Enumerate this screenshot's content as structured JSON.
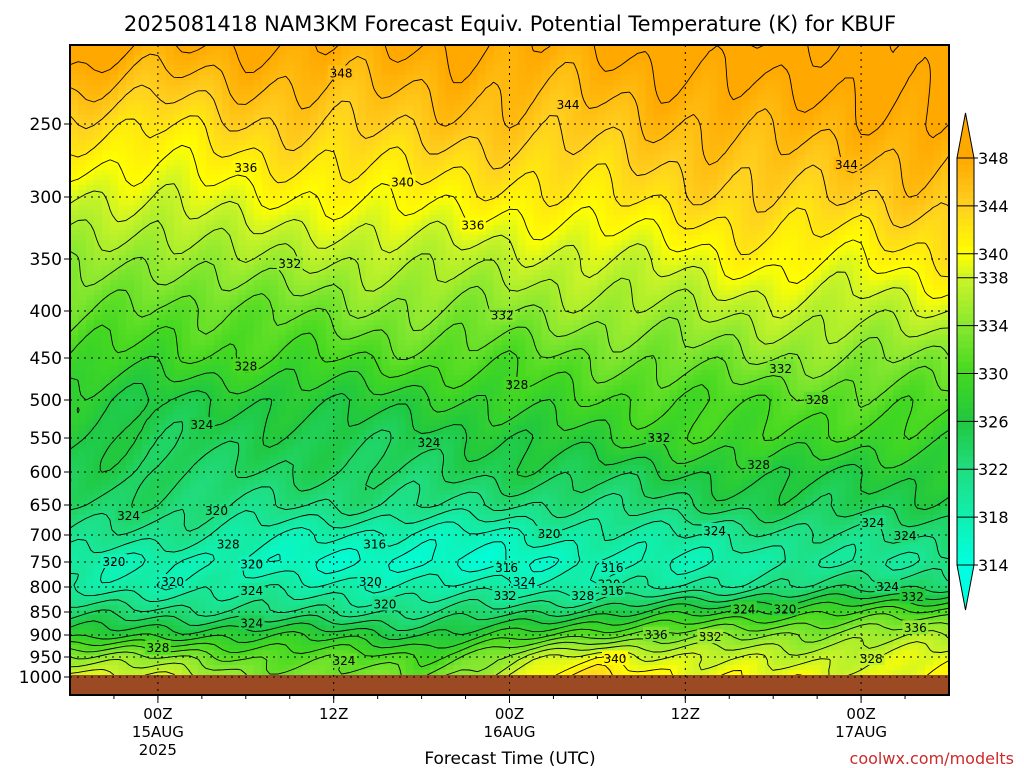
{
  "chart_data": {
    "type": "heatmap",
    "subtype": "time-height contour (filled + line contours)",
    "title": "2025081418 NAM3KM Forecast Equiv. Potential Temperature (K) for KBUF",
    "xlabel": "Forecast Time (UTC)",
    "ylabel": "",
    "y_scale": "pressure (reversed, log-like)",
    "y_ticks": [
      "250",
      "300",
      "350",
      "400",
      "450",
      "500",
      "550",
      "600",
      "650",
      "700",
      "750",
      "800",
      "850",
      "900",
      "950",
      "1000"
    ],
    "ylim_hpa": [
      1000,
      200
    ],
    "x_ticks": [
      {
        "hour": 6,
        "label": "00Z",
        "date": "15AUG",
        "year": "2025"
      },
      {
        "hour": 18,
        "label": "12Z",
        "date": "",
        "year": ""
      },
      {
        "hour": 30,
        "label": "00Z",
        "date": "16AUG",
        "year": ""
      },
      {
        "hour": 42,
        "label": "12Z",
        "date": "",
        "year": ""
      },
      {
        "hour": 54,
        "label": "00Z",
        "date": "17AUG",
        "year": ""
      }
    ],
    "xlim_hours": [
      0,
      60
    ],
    "colorbar": {
      "levels": [
        "314",
        "318",
        "322",
        "326",
        "330",
        "334",
        "338",
        "340",
        "344",
        "348"
      ],
      "colors": [
        "#00ffe0",
        "#10f0b0",
        "#20dd80",
        "#20c840",
        "#44d820",
        "#88e830",
        "#ccf428",
        "#ffff00",
        "#ffd020",
        "#ffa800"
      ],
      "extend": "both"
    },
    "ground_color": "#9b4a24",
    "profiles": [
      {
        "hour": 0,
        "values": [
          [
            200,
            350
          ],
          [
            250,
            343
          ],
          [
            300,
            338
          ],
          [
            350,
            335
          ],
          [
            400,
            333
          ],
          [
            450,
            330
          ],
          [
            500,
            327
          ],
          [
            550,
            326
          ],
          [
            600,
            325
          ],
          [
            650,
            324
          ],
          [
            700,
            322
          ],
          [
            750,
            319
          ],
          [
            800,
            319
          ],
          [
            850,
            323
          ],
          [
            900,
            327
          ],
          [
            950,
            335
          ],
          [
            1000,
            340
          ]
        ]
      },
      {
        "hour": 6,
        "values": [
          [
            200,
            348
          ],
          [
            250,
            342
          ],
          [
            300,
            338
          ],
          [
            350,
            334
          ],
          [
            400,
            331
          ],
          [
            450,
            329
          ],
          [
            500,
            326
          ],
          [
            550,
            325
          ],
          [
            600,
            324
          ],
          [
            650,
            323
          ],
          [
            700,
            321
          ],
          [
            750,
            318
          ],
          [
            800,
            319
          ],
          [
            850,
            323
          ],
          [
            900,
            327
          ],
          [
            950,
            334
          ],
          [
            1000,
            338
          ]
        ]
      },
      {
        "hour": 12,
        "values": [
          [
            200,
            348
          ],
          [
            250,
            344
          ],
          [
            300,
            340
          ],
          [
            350,
            336
          ],
          [
            400,
            332
          ],
          [
            450,
            330
          ],
          [
            500,
            326
          ],
          [
            550,
            325
          ],
          [
            600,
            324
          ],
          [
            650,
            322
          ],
          [
            700,
            319
          ],
          [
            750,
            317
          ],
          [
            800,
            319
          ],
          [
            850,
            322
          ],
          [
            900,
            328
          ],
          [
            950,
            332
          ],
          [
            1000,
            334
          ]
        ]
      },
      {
        "hour": 18,
        "values": [
          [
            200,
            348
          ],
          [
            250,
            344
          ],
          [
            300,
            340
          ],
          [
            350,
            336
          ],
          [
            400,
            333
          ],
          [
            450,
            330
          ],
          [
            500,
            327
          ],
          [
            550,
            325
          ],
          [
            600,
            324
          ],
          [
            650,
            322
          ],
          [
            700,
            318
          ],
          [
            750,
            316
          ],
          [
            800,
            319
          ],
          [
            850,
            322
          ],
          [
            900,
            327
          ],
          [
            950,
            331
          ],
          [
            1000,
            333
          ]
        ]
      },
      {
        "hour": 24,
        "values": [
          [
            200,
            348
          ],
          [
            250,
            345
          ],
          [
            300,
            341
          ],
          [
            350,
            337
          ],
          [
            400,
            334
          ],
          [
            450,
            331
          ],
          [
            500,
            327
          ],
          [
            550,
            325
          ],
          [
            600,
            324
          ],
          [
            650,
            322
          ],
          [
            700,
            317
          ],
          [
            750,
            315
          ],
          [
            800,
            318
          ],
          [
            850,
            322
          ],
          [
            900,
            326
          ],
          [
            950,
            330
          ],
          [
            1000,
            332
          ]
        ]
      },
      {
        "hour": 30,
        "values": [
          [
            200,
            348
          ],
          [
            250,
            345
          ],
          [
            300,
            341
          ],
          [
            350,
            337
          ],
          [
            400,
            334
          ],
          [
            450,
            331
          ],
          [
            500,
            329
          ],
          [
            550,
            326
          ],
          [
            600,
            325
          ],
          [
            650,
            322
          ],
          [
            700,
            318
          ],
          [
            750,
            316
          ],
          [
            800,
            319
          ],
          [
            850,
            323
          ],
          [
            900,
            328
          ],
          [
            950,
            335
          ],
          [
            1000,
            338
          ]
        ]
      },
      {
        "hour": 36,
        "values": [
          [
            200,
            348
          ],
          [
            250,
            345
          ],
          [
            300,
            342
          ],
          [
            350,
            338
          ],
          [
            400,
            335
          ],
          [
            450,
            332
          ],
          [
            500,
            330
          ],
          [
            550,
            328
          ],
          [
            600,
            325
          ],
          [
            650,
            322
          ],
          [
            700,
            319
          ],
          [
            750,
            317
          ],
          [
            800,
            319
          ],
          [
            850,
            325
          ],
          [
            900,
            332
          ],
          [
            950,
            340
          ],
          [
            1000,
            343
          ]
        ]
      },
      {
        "hour": 42,
        "values": [
          [
            200,
            349
          ],
          [
            250,
            346
          ],
          [
            300,
            343
          ],
          [
            350,
            339
          ],
          [
            400,
            336
          ],
          [
            450,
            333
          ],
          [
            500,
            330
          ],
          [
            550,
            329
          ],
          [
            600,
            326
          ],
          [
            650,
            324
          ],
          [
            700,
            320
          ],
          [
            750,
            318
          ],
          [
            800,
            320
          ],
          [
            850,
            327
          ],
          [
            900,
            333
          ],
          [
            950,
            338
          ],
          [
            1000,
            340
          ]
        ]
      },
      {
        "hour": 48,
        "values": [
          [
            200,
            350
          ],
          [
            250,
            347
          ],
          [
            300,
            344
          ],
          [
            350,
            341
          ],
          [
            400,
            337
          ],
          [
            450,
            334
          ],
          [
            500,
            331
          ],
          [
            550,
            330
          ],
          [
            600,
            327
          ],
          [
            650,
            325
          ],
          [
            700,
            321
          ],
          [
            750,
            319
          ],
          [
            800,
            322
          ],
          [
            850,
            329
          ],
          [
            900,
            334
          ],
          [
            950,
            337
          ],
          [
            1000,
            339
          ]
        ]
      },
      {
        "hour": 54,
        "values": [
          [
            200,
            349
          ],
          [
            250,
            347
          ],
          [
            300,
            344
          ],
          [
            350,
            340
          ],
          [
            400,
            337
          ],
          [
            450,
            334
          ],
          [
            500,
            331
          ],
          [
            550,
            329
          ],
          [
            600,
            326
          ],
          [
            650,
            325
          ],
          [
            700,
            322
          ],
          [
            750,
            320
          ],
          [
            800,
            323
          ],
          [
            850,
            330
          ],
          [
            900,
            335
          ],
          [
            950,
            338
          ],
          [
            1000,
            339
          ]
        ]
      },
      {
        "hour": 60,
        "values": [
          [
            200,
            350
          ],
          [
            250,
            348
          ],
          [
            300,
            345
          ],
          [
            350,
            342
          ],
          [
            400,
            338
          ],
          [
            450,
            334
          ],
          [
            500,
            331
          ],
          [
            550,
            329
          ],
          [
            600,
            327
          ],
          [
            650,
            325
          ],
          [
            700,
            323
          ],
          [
            750,
            321
          ],
          [
            800,
            324
          ],
          [
            850,
            331
          ],
          [
            900,
            336
          ],
          [
            950,
            339
          ],
          [
            1000,
            340
          ]
        ]
      }
    ],
    "contour_labels": [
      {
        "text": "348",
        "hour": 18.5,
        "p": 218
      },
      {
        "text": "344",
        "hour": 34,
        "p": 238
      },
      {
        "text": "344",
        "hour": 53,
        "p": 278
      },
      {
        "text": "336",
        "hour": 12,
        "p": 280
      },
      {
        "text": "340",
        "hour": 22.7,
        "p": 290
      },
      {
        "text": "336",
        "hour": 27.5,
        "p": 323
      },
      {
        "text": "332",
        "hour": 15,
        "p": 355
      },
      {
        "text": "332",
        "hour": 29.5,
        "p": 405
      },
      {
        "text": "328",
        "hour": 12,
        "p": 460
      },
      {
        "text": "332",
        "hour": 48.5,
        "p": 463
      },
      {
        "text": "328",
        "hour": 30.5,
        "p": 482
      },
      {
        "text": "328",
        "hour": 51,
        "p": 500
      },
      {
        "text": "324",
        "hour": 9,
        "p": 533
      },
      {
        "text": "324",
        "hour": 24.5,
        "p": 557
      },
      {
        "text": "332",
        "hour": 40.2,
        "p": 550
      },
      {
        "text": "328",
        "hour": 47,
        "p": 590
      },
      {
        "text": "320",
        "hour": 10,
        "p": 660
      },
      {
        "text": "324",
        "hour": 4,
        "p": 668
      },
      {
        "text": "324",
        "hour": 54.8,
        "p": 680
      },
      {
        "text": "328",
        "hour": 10.8,
        "p": 718
      },
      {
        "text": "316",
        "hour": 20.8,
        "p": 718
      },
      {
        "text": "320",
        "hour": 32.7,
        "p": 698
      },
      {
        "text": "324",
        "hour": 44,
        "p": 693
      },
      {
        "text": "324",
        "hour": 57,
        "p": 702
      },
      {
        "text": "320",
        "hour": 3,
        "p": 750
      },
      {
        "text": "320",
        "hour": 12.4,
        "p": 755
      },
      {
        "text": "316",
        "hour": 29.8,
        "p": 762
      },
      {
        "text": "316",
        "hour": 37,
        "p": 762
      },
      {
        "text": "320",
        "hour": 7,
        "p": 790
      },
      {
        "text": "320",
        "hour": 20.5,
        "p": 790
      },
      {
        "text": "324",
        "hour": 31,
        "p": 790
      },
      {
        "text": "320",
        "hour": 36.8,
        "p": 795
      },
      {
        "text": "324",
        "hour": 12.4,
        "p": 808
      },
      {
        "text": "316",
        "hour": 37,
        "p": 808
      },
      {
        "text": "332",
        "hour": 29.7,
        "p": 818
      },
      {
        "text": "328",
        "hour": 35,
        "p": 818
      },
      {
        "text": "324",
        "hour": 55.8,
        "p": 800
      },
      {
        "text": "332",
        "hour": 57.5,
        "p": 820
      },
      {
        "text": "320",
        "hour": 21.5,
        "p": 835
      },
      {
        "text": "324",
        "hour": 46,
        "p": 845
      },
      {
        "text": "320",
        "hour": 48.8,
        "p": 845
      },
      {
        "text": "324",
        "hour": 12.4,
        "p": 875
      },
      {
        "text": "336",
        "hour": 40,
        "p": 900
      },
      {
        "text": "332",
        "hour": 43.7,
        "p": 905
      },
      {
        "text": "336",
        "hour": 57.7,
        "p": 885
      },
      {
        "text": "328",
        "hour": 6,
        "p": 930
      },
      {
        "text": "324",
        "hour": 18.7,
        "p": 960
      },
      {
        "text": "340",
        "hour": 37.2,
        "p": 955
      },
      {
        "text": "328",
        "hour": 54.7,
        "p": 955
      }
    ],
    "credit": "coolwx.com/modelts"
  }
}
